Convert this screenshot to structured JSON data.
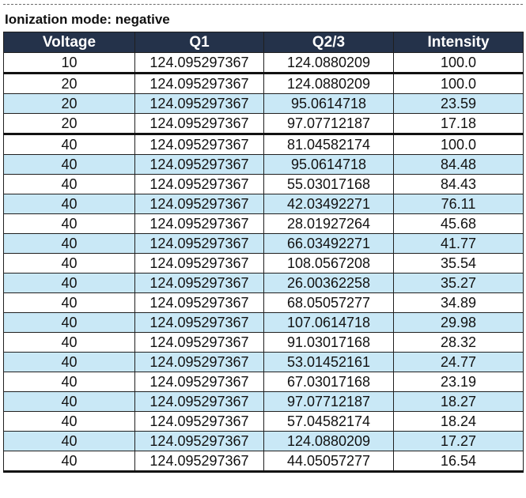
{
  "title": "Ionization mode: negative",
  "columns": [
    "Voltage",
    "Q1",
    "Q2/3",
    "Intensity"
  ],
  "rows": [
    {
      "voltage": "10",
      "q1": "124.095297367",
      "q23": "124.0880209",
      "intensity": "100.0"
    },
    {
      "voltage": "20",
      "q1": "124.095297367",
      "q23": "124.0880209",
      "intensity": "100.0"
    },
    {
      "voltage": "20",
      "q1": "124.095297367",
      "q23": "95.0614718",
      "intensity": "23.59"
    },
    {
      "voltage": "20",
      "q1": "124.095297367",
      "q23": "97.07712187",
      "intensity": "17.18"
    },
    {
      "voltage": "40",
      "q1": "124.095297367",
      "q23": "81.04582174",
      "intensity": "100.0"
    },
    {
      "voltage": "40",
      "q1": "124.095297367",
      "q23": "95.0614718",
      "intensity": "84.48"
    },
    {
      "voltage": "40",
      "q1": "124.095297367",
      "q23": "55.03017168",
      "intensity": "84.43"
    },
    {
      "voltage": "40",
      "q1": "124.095297367",
      "q23": "42.03492271",
      "intensity": "76.11"
    },
    {
      "voltage": "40",
      "q1": "124.095297367",
      "q23": "28.01927264",
      "intensity": "45.68"
    },
    {
      "voltage": "40",
      "q1": "124.095297367",
      "q23": "66.03492271",
      "intensity": "41.77"
    },
    {
      "voltage": "40",
      "q1": "124.095297367",
      "q23": "108.0567208",
      "intensity": "35.54"
    },
    {
      "voltage": "40",
      "q1": "124.095297367",
      "q23": "26.00362258",
      "intensity": "35.27"
    },
    {
      "voltage": "40",
      "q1": "124.095297367",
      "q23": "68.05057277",
      "intensity": "34.89"
    },
    {
      "voltage": "40",
      "q1": "124.095297367",
      "q23": "107.0614718",
      "intensity": "29.98"
    },
    {
      "voltage": "40",
      "q1": "124.095297367",
      "q23": "91.03017168",
      "intensity": "28.32"
    },
    {
      "voltage": "40",
      "q1": "124.095297367",
      "q23": "53.01452161",
      "intensity": "24.77"
    },
    {
      "voltage": "40",
      "q1": "124.095297367",
      "q23": "67.03017168",
      "intensity": "23.19"
    },
    {
      "voltage": "40",
      "q1": "124.095297367",
      "q23": "97.07712187",
      "intensity": "18.27"
    },
    {
      "voltage": "40",
      "q1": "124.095297367",
      "q23": "57.04582174",
      "intensity": "18.24"
    },
    {
      "voltage": "40",
      "q1": "124.095297367",
      "q23": "124.0880209",
      "intensity": "17.27"
    },
    {
      "voltage": "40",
      "q1": "124.095297367",
      "q23": "44.05057277",
      "intensity": "16.54"
    }
  ],
  "colors": {
    "header_bg": "#24324a",
    "header_text": "#ffffff",
    "stripe": "#c9e8f6",
    "row_bg": "#ffffff"
  }
}
